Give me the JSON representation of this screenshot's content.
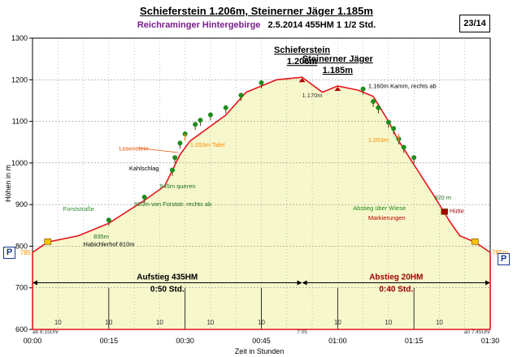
{
  "header": {
    "title": "Schieferstein 1.206m, Steinerner Jäger 1.185m",
    "region": "Reichraminger Hintergebirge",
    "info": "2.5.2014   455HM     1 1/2 Std.",
    "page": "23/14"
  },
  "parking_label": "P",
  "colors": {
    "profile": "#e8141e",
    "fill": "#f7f7cc",
    "tree": "#1e8c1e",
    "marker": "#ff8c00"
  },
  "chart_data": {
    "type": "area",
    "xlabel": "Zeit in Stunden",
    "ylabel": "Höhen in m",
    "ylim": [
      600,
      1300
    ],
    "xlim": [
      0,
      90
    ],
    "yticks": [
      "600",
      "700",
      "800",
      "900",
      "1000",
      "1100",
      "1200",
      "1300"
    ],
    "xticks": [
      {
        "x": 0,
        "label": "00:00"
      },
      {
        "x": 15,
        "label": "00:15"
      },
      {
        "x": 30,
        "label": "00:30"
      },
      {
        "x": 45,
        "label": "00:45"
      },
      {
        "x": 60,
        "label": "01:00"
      },
      {
        "x": 75,
        "label": "01:15"
      },
      {
        "x": 90,
        "label": "01:30"
      }
    ],
    "vgrid": [
      0,
      5,
      10,
      15,
      20,
      25,
      30,
      35,
      40,
      45,
      50,
      55,
      60,
      65,
      70,
      75,
      80,
      85,
      90
    ],
    "series": [
      {
        "values": [
          [
            0,
            785
          ],
          [
            3,
            810
          ],
          [
            9,
            825
          ],
          [
            15,
            855
          ],
          [
            22,
            910
          ],
          [
            26,
            945
          ],
          [
            29,
            1020
          ],
          [
            31,
            1053
          ],
          [
            38,
            1115
          ],
          [
            42,
            1170
          ],
          [
            48,
            1200
          ],
          [
            53,
            1206
          ],
          [
            57,
            1170
          ],
          [
            60,
            1185
          ],
          [
            64,
            1175
          ],
          [
            67,
            1160
          ],
          [
            70,
            1100
          ],
          [
            72,
            1053
          ],
          [
            79,
            920
          ],
          [
            82,
            860
          ],
          [
            84,
            825
          ],
          [
            87,
            810
          ],
          [
            90,
            785
          ]
        ]
      }
    ],
    "segments": [
      {
        "x1": 0,
        "x2": 53,
        "label1": "Aufstieg 435HM",
        "label2": "0:50 Std.",
        "color": "#000000"
      },
      {
        "x1": 53,
        "x2": 90,
        "label1": "Abstieg 20HM",
        "label2": "0:40 Std.",
        "color": "#a00000"
      }
    ],
    "segment_y": 712,
    "interval_labels": [
      {
        "x": 5,
        "label": "10"
      },
      {
        "x": 15,
        "label": "10"
      },
      {
        "x": 25,
        "label": "10"
      },
      {
        "x": 35,
        "label": "10"
      },
      {
        "x": 45,
        "label": "10"
      },
      {
        "x": 60,
        "label": "10"
      },
      {
        "x": 70,
        "label": "10"
      },
      {
        "x": 80,
        "label": "10"
      }
    ],
    "time_notes": [
      {
        "x": 0,
        "label": "ab 6:15Uhr",
        "anchor": "start"
      },
      {
        "x": 53,
        "label": "7:05",
        "anchor": "middle"
      },
      {
        "x": 90,
        "label": "an 7:45Uhr",
        "anchor": "end"
      }
    ],
    "side_labels": [
      {
        "y": 785,
        "label": "785",
        "side": "left"
      },
      {
        "y": 785,
        "label": "785m",
        "side": "right"
      }
    ],
    "peaks": [
      {
        "x": 53,
        "y": 1206,
        "label1": "Schieferstein",
        "label2": "1.206m"
      },
      {
        "x": 60,
        "y": 1185,
        "label1": "Steinerner Jäger",
        "label2": "1.185m"
      }
    ],
    "annotations": [
      {
        "x": 10,
        "y": 800,
        "text": "Habichlerhof 810m",
        "color": "#000000"
      },
      {
        "x": 6,
        "y": 885,
        "text": "Forststraße",
        "color": "#2e8b2e"
      },
      {
        "x": 12,
        "y": 818,
        "text": "835m",
        "color": "#1e6e1e"
      },
      {
        "x": 20,
        "y": 896,
        "text": "920m von Forststr. rechts ab",
        "color": "#1e6e1e"
      },
      {
        "x": 25,
        "y": 939,
        "text": "945m queren",
        "color": "#1e6e1e"
      },
      {
        "x": 19,
        "y": 982,
        "text": "Kahlschlag",
        "color": "#000000"
      },
      {
        "x": 17,
        "y": 1030,
        "text": "Losenstein",
        "color": "#e05000"
      },
      {
        "x": 31,
        "y": 1039,
        "text": "1.053m Tafel",
        "color": "#ff8c00"
      },
      {
        "x": 53,
        "y": 1158,
        "text": "1.170m",
        "color": "#333333"
      },
      {
        "x": 66,
        "y": 1180,
        "text": "1.160m Kamm, rechts ab",
        "color": "#000000"
      },
      {
        "x": 66,
        "y": 1050,
        "text": "1.053m",
        "color": "#ff8c00"
      },
      {
        "x": 79,
        "y": 912,
        "text": "920 m",
        "color": "#1e6e1e"
      },
      {
        "x": 63,
        "y": 887,
        "text": "Abstieg über Wiese",
        "color": "#1e8c1e"
      },
      {
        "x": 66,
        "y": 863,
        "text": "Markierungen",
        "color": "#c00000"
      },
      {
        "x": 82,
        "y": 880,
        "text": "Hütte",
        "color": "#a00000"
      }
    ]
  }
}
